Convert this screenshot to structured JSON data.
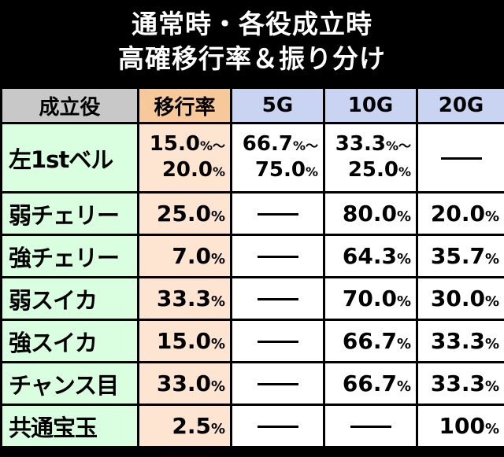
{
  "title": {
    "line1": "通常時・各役成立時",
    "line2": "高確移行率＆振り分け"
  },
  "headers": [
    "成立役",
    "移行率",
    "5G",
    "10G",
    "20G"
  ],
  "rows": [
    {
      "name": "左1stベル",
      "rate": [
        "15.0",
        "20.0"
      ],
      "rate_seps": [
        "%～",
        "%"
      ],
      "g5": [
        "66.7",
        "75.0"
      ],
      "g5_seps": [
        "%～",
        "%"
      ],
      "g10": [
        "33.3",
        "25.0"
      ],
      "g10_seps": [
        "%～",
        "%"
      ],
      "g20": "—"
    },
    {
      "name": "弱チェリー",
      "rate": "25.0",
      "g5": "—",
      "g10": "80.0",
      "g20": "20.0"
    },
    {
      "name": "強チェリー",
      "rate": "7.0",
      "g5": "—",
      "g10": "64.3",
      "g20": "35.7"
    },
    {
      "name": "弱スイカ",
      "rate": "33.3",
      "g5": "—",
      "g10": "70.0",
      "g20": "30.0"
    },
    {
      "name": "強スイカ",
      "rate": "15.0",
      "g5": "—",
      "g10": "66.7",
      "g20": "33.3"
    },
    {
      "name": "チャンス目",
      "rate": "33.0",
      "g5": "—",
      "g10": "66.7",
      "g20": "33.3"
    },
    {
      "name": "共通宝玉",
      "rate": "2.5",
      "g5": "—",
      "g10": "—",
      "g20": "100"
    }
  ],
  "pct_symbol": "%",
  "colors": {
    "header_role": "#c8c8c8",
    "header_rate": "#f7c99a",
    "header_game": "#c9d3f2",
    "name_cell": "#d9ffe0",
    "rate_cell": "#fde5d1"
  }
}
